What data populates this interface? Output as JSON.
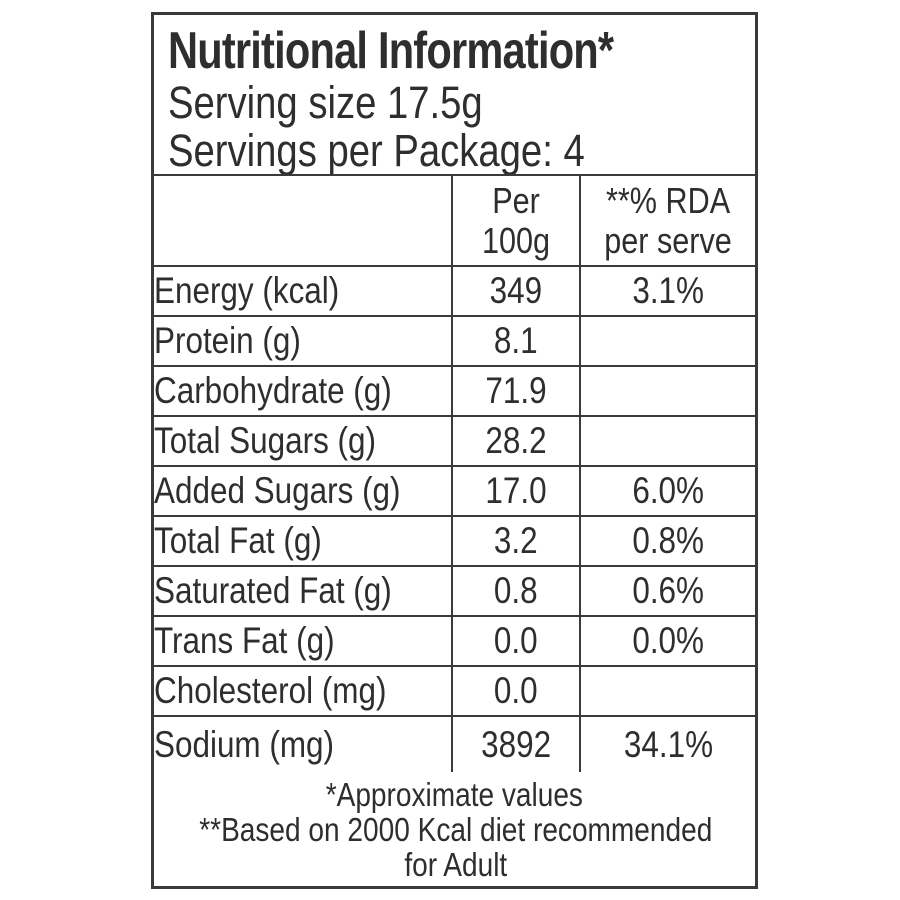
{
  "label": {
    "title": "Nutritional Information*",
    "serving_size": "Serving size 17.5g",
    "servings_per_package": "Servings per Package: 4"
  },
  "table": {
    "columns": {
      "nutrient_header": "",
      "per_100g_header": "Per\n100g",
      "rda_header": "**% RDA\nper serve"
    },
    "rows": [
      {
        "label": "Energy (kcal)",
        "per_100g": "349",
        "rda_per_serve": "3.1%"
      },
      {
        "label": "Protein (g)",
        "per_100g": "8.1",
        "rda_per_serve": ""
      },
      {
        "label": "Carbohydrate (g)",
        "per_100g": "71.9",
        "rda_per_serve": ""
      },
      {
        "label": "Total Sugars (g)",
        "per_100g": "28.2",
        "rda_per_serve": ""
      },
      {
        "label": "Added Sugars (g)",
        "per_100g": "17.0",
        "rda_per_serve": "6.0%"
      },
      {
        "label": "Total Fat (g)",
        "per_100g": "3.2",
        "rda_per_serve": "0.8%"
      },
      {
        "label": "Saturated Fat (g)",
        "per_100g": "0.8",
        "rda_per_serve": "0.6%"
      },
      {
        "label": "Trans Fat (g)",
        "per_100g": "0.0",
        "rda_per_serve": "0.0%"
      },
      {
        "label": "Cholesterol (mg)",
        "per_100g": "0.0",
        "rda_per_serve": ""
      },
      {
        "label": "Sodium (mg)",
        "per_100g": "3892",
        "rda_per_serve": "34.1%"
      }
    ]
  },
  "footnotes": {
    "approximate": "*Approximate values",
    "rda_basis": "**Based on 2000 Kcal diet recommended\nfor Adult"
  },
  "colors": {
    "text": "#2e2e2e",
    "border": "#3a3a3a",
    "background": "#ffffff"
  }
}
